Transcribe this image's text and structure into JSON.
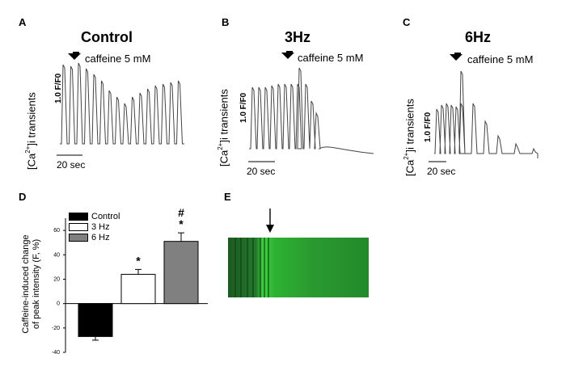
{
  "panels": {
    "A": {
      "letter": "A",
      "title": "Control",
      "stimulus": "caffeine 5 mM",
      "ylabel_prefix": "[Ca",
      "ylabel_sup": "2+",
      "ylabel_suffix": "]i transients",
      "amp_unit": "1.0 F/F0",
      "scale": "20 sec"
    },
    "B": {
      "letter": "B",
      "title": "3Hz",
      "stimulus": "caffeine 5 mM",
      "ylabel_prefix": "[Ca",
      "ylabel_sup": "2+",
      "ylabel_suffix": "]i transients",
      "amp_unit": "1.0 F/F0",
      "scale": "20 sec"
    },
    "C": {
      "letter": "C",
      "title": "6Hz",
      "stimulus": "caffeine 5 mM",
      "ylabel_prefix": "[Ca",
      "ylabel_sup": "2+",
      "ylabel_suffix": "]i transients",
      "amp_unit": "1.0 F/F0",
      "scale": "20 sec"
    },
    "D": {
      "letter": "D"
    },
    "E": {
      "letter": "E"
    }
  },
  "chart_data": [
    {
      "type": "bar",
      "panel": "D",
      "categories": [
        "Control",
        "3 Hz",
        "6 Hz"
      ],
      "values": [
        -27,
        24,
        51
      ],
      "errors": [
        3,
        4,
        7
      ],
      "colors": [
        "#000000",
        "#ffffff",
        "#808080"
      ],
      "significance": [
        "",
        "*",
        "#\n*"
      ],
      "ylabel_line1": "Caffeine-induced change",
      "ylabel_line2": "of peak intensity (F, %)",
      "ylim": [
        -40,
        70
      ],
      "yticks": [
        "60",
        "40",
        "20",
        "0",
        "-20",
        "-40"
      ],
      "legend": [
        "Control",
        "3 Hz",
        "6 Hz"
      ]
    }
  ]
}
